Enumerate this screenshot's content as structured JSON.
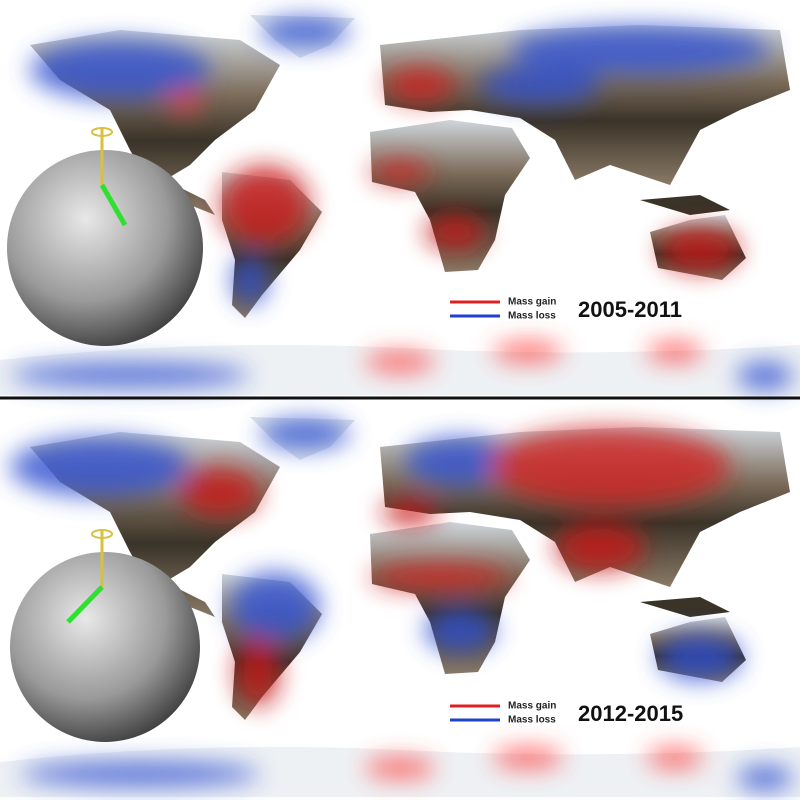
{
  "panels": [
    {
      "legend": [
        "Mass gain",
        "Mass loss"
      ],
      "period": "2005-2011"
    },
    {
      "legend": [
        "Mass gain",
        "Mass loss"
      ],
      "period": "2012-2015"
    }
  ]
}
